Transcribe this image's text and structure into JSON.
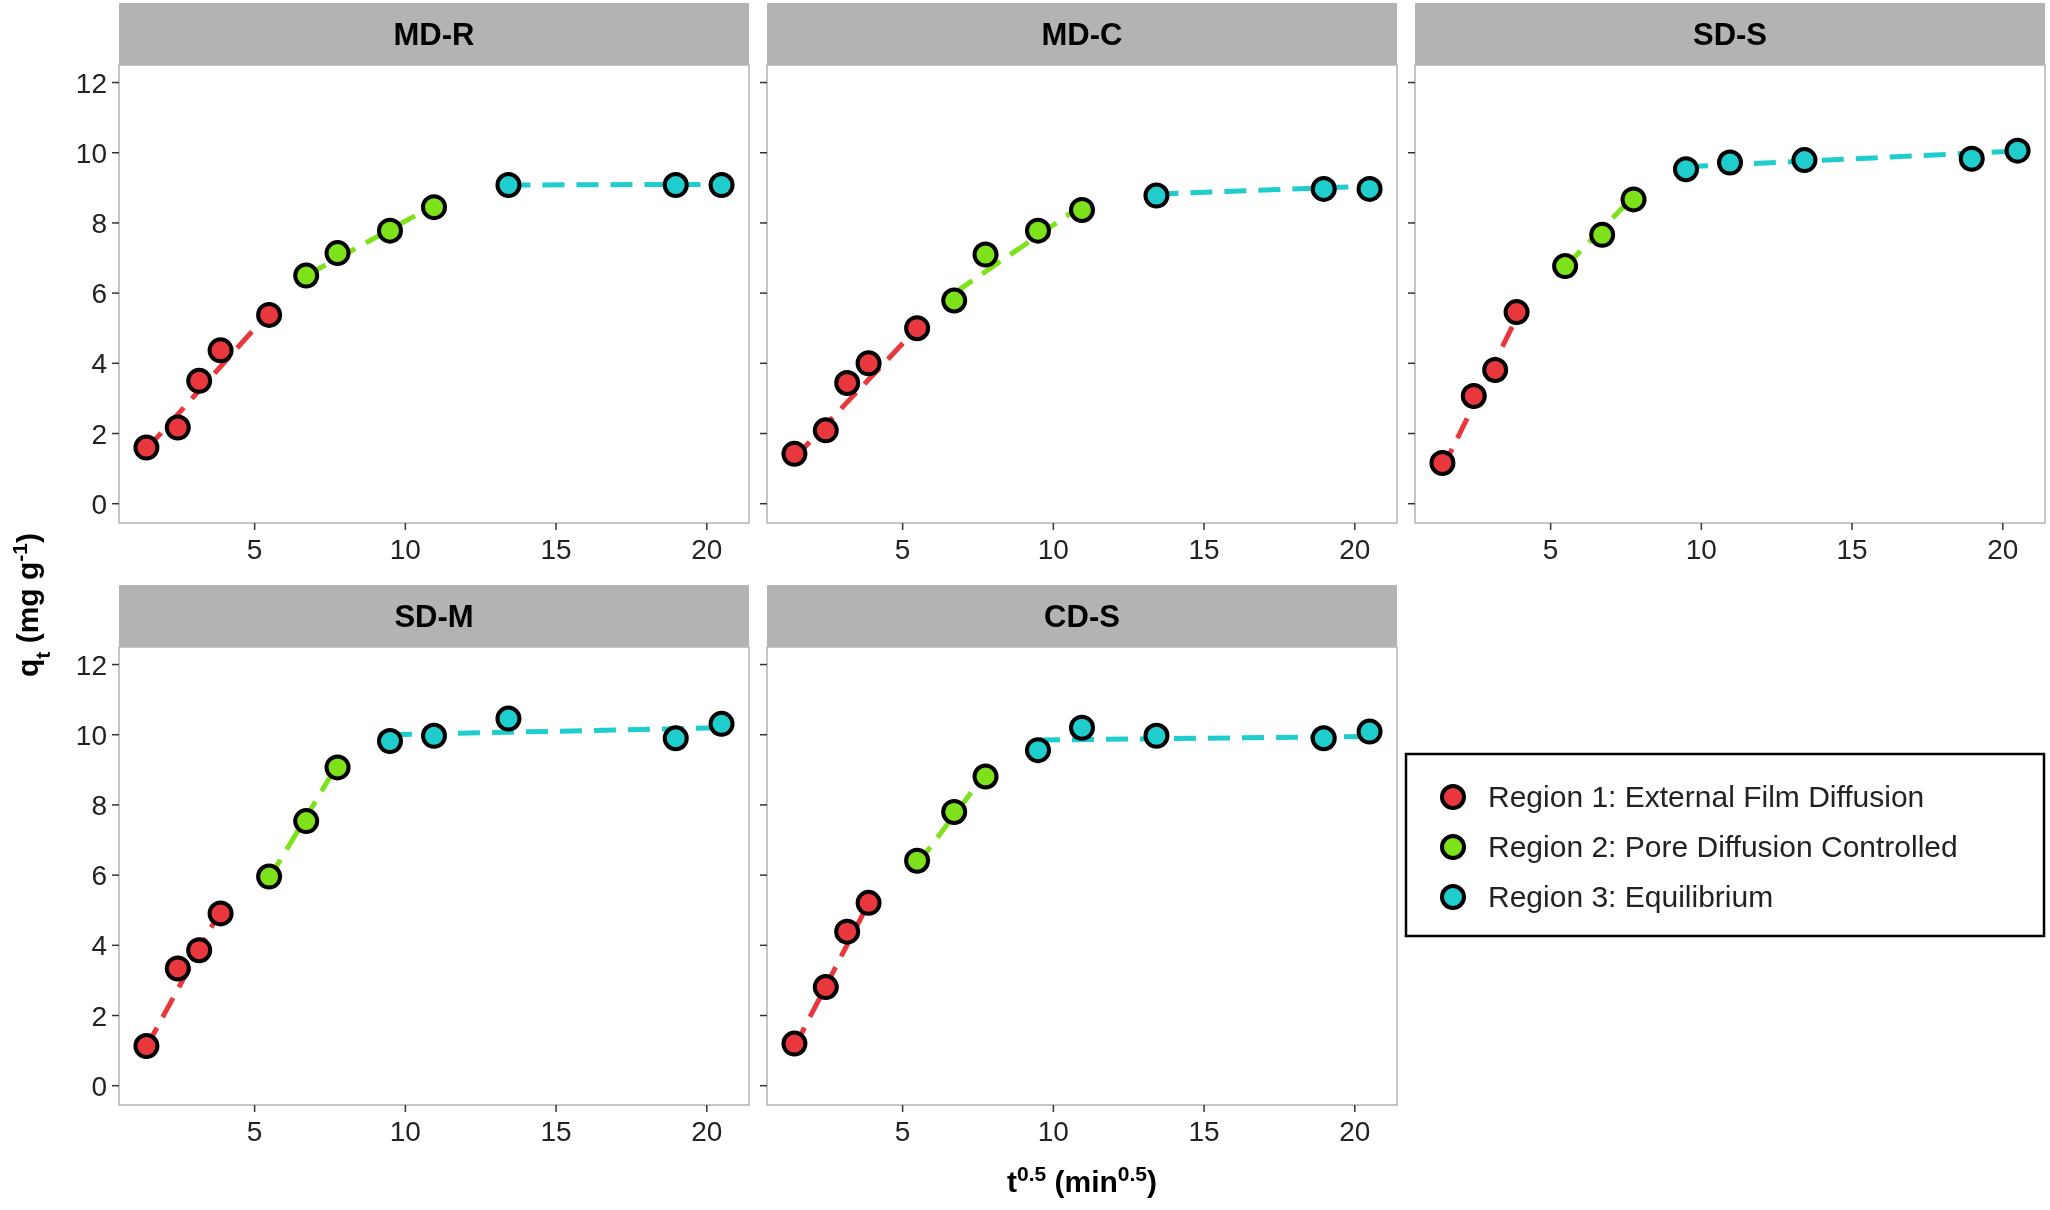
{
  "chart_data": [
    {
      "type": "scatter",
      "title": "MD-R",
      "ylabel": "q$_{t}$ (mg g$^{-1}$)",
      "xlim": [
        0.5,
        21.4
      ],
      "ylim": [
        -0.55,
        12.5
      ],
      "xticks": [
        5,
        10,
        15,
        20
      ],
      "yticks": [
        0,
        2,
        4,
        6,
        8,
        10,
        12
      ],
      "marker": "circle",
      "series": [
        {
          "color": "#e8383d",
          "x": [
            1.41,
            2.45,
            3.16,
            3.87,
            5.48
          ],
          "values": [
            1.6,
            2.17,
            3.5,
            4.37,
            5.38
          ]
        },
        {
          "color": "#7ee21a",
          "x": [
            6.71,
            7.75,
            9.49,
            10.95
          ],
          "values": [
            6.5,
            7.14,
            7.78,
            8.45
          ]
        },
        {
          "color": "#1fcdcd",
          "x": [
            13.42,
            18.97,
            20.49
          ],
          "values": [
            9.08,
            9.08,
            9.08
          ]
        },
        {
          "type": "line",
          "marker": "none",
          "line_style": "dashed",
          "color": "#e8383d",
          "x": [
            1.41,
            5.48
          ],
          "values": [
            1.55,
            5.45
          ]
        },
        {
          "type": "line",
          "marker": "none",
          "line_style": "dashed",
          "color": "#7ee21a",
          "x": [
            6.71,
            10.95
          ],
          "values": [
            6.5,
            8.5
          ]
        },
        {
          "type": "line",
          "marker": "none",
          "line_style": "dashed",
          "color": "#1fcdcd",
          "x": [
            13.42,
            20.49
          ],
          "values": [
            9.08,
            9.1
          ]
        }
      ]
    },
    {
      "type": "scatter",
      "title": "MD-C",
      "xlim": [
        0.5,
        21.4
      ],
      "ylim": [
        -0.55,
        12.5
      ],
      "xticks": [
        5,
        10,
        15,
        20
      ],
      "yticks": [
        0,
        2,
        4,
        6,
        8,
        10,
        12
      ],
      "tick_labels": "x",
      "marker": "circle",
      "series": [
        {
          "color": "#e8383d",
          "x": [
            1.41,
            2.45,
            3.16,
            3.87,
            5.48
          ],
          "values": [
            1.42,
            2.09,
            3.44,
            4.0,
            5.0
          ]
        },
        {
          "color": "#7ee21a",
          "x": [
            6.71,
            7.75,
            9.49,
            10.95
          ],
          "values": [
            5.79,
            7.1,
            7.78,
            8.37
          ]
        },
        {
          "color": "#1fcdcd",
          "x": [
            13.42,
            18.97,
            20.49
          ],
          "values": [
            8.78,
            8.97,
            8.97
          ]
        },
        {
          "type": "line",
          "marker": "none",
          "line_style": "dashed",
          "color": "#e8383d",
          "x": [
            1.41,
            5.48
          ],
          "values": [
            1.3,
            5.0
          ]
        },
        {
          "type": "line",
          "marker": "none",
          "line_style": "dashed",
          "color": "#7ee21a",
          "x": [
            6.71,
            10.95
          ],
          "values": [
            6.0,
            8.5
          ]
        },
        {
          "type": "line",
          "marker": "none",
          "line_style": "dashed",
          "color": "#1fcdcd",
          "x": [
            13.42,
            20.49
          ],
          "values": [
            8.82,
            9.05
          ]
        }
      ]
    },
    {
      "type": "scatter",
      "title": "SD-S",
      "xlim": [
        0.5,
        21.4
      ],
      "ylim": [
        -0.55,
        12.5
      ],
      "xticks": [
        5,
        10,
        15,
        20
      ],
      "yticks": [
        0,
        2,
        4,
        6,
        8,
        10,
        12
      ],
      "tick_labels": "x",
      "marker": "circle",
      "series": [
        {
          "color": "#e8383d",
          "x": [
            1.41,
            2.45,
            3.16,
            3.87
          ],
          "values": [
            1.16,
            3.07,
            3.81,
            5.46
          ]
        },
        {
          "color": "#7ee21a",
          "x": [
            5.48,
            6.71,
            7.75
          ],
          "values": [
            6.77,
            7.66,
            8.67
          ]
        },
        {
          "color": "#1fcdcd",
          "x": [
            9.49,
            10.95,
            13.42,
            18.97,
            20.49
          ],
          "values": [
            9.53,
            9.72,
            9.79,
            9.83,
            10.06
          ]
        },
        {
          "type": "line",
          "marker": "none",
          "line_style": "dashed",
          "color": "#e8383d",
          "x": [
            1.41,
            3.87
          ],
          "values": [
            1.0,
            5.3
          ]
        },
        {
          "type": "line",
          "marker": "none",
          "line_style": "dashed",
          "color": "#7ee21a",
          "x": [
            5.48,
            7.75
          ],
          "values": [
            6.75,
            8.75
          ]
        },
        {
          "type": "line",
          "marker": "none",
          "line_style": "dashed",
          "color": "#1fcdcd",
          "x": [
            9.49,
            20.49
          ],
          "values": [
            9.6,
            10.05
          ]
        }
      ]
    },
    {
      "type": "scatter",
      "title": "SD-M",
      "xlim": [
        0.5,
        21.4
      ],
      "ylim": [
        -0.55,
        12.5
      ],
      "xticks": [
        5,
        10,
        15,
        20
      ],
      "yticks": [
        0,
        2,
        4,
        6,
        8,
        10,
        12
      ],
      "marker": "circle",
      "series": [
        {
          "color": "#e8383d",
          "x": [
            1.41,
            2.45,
            3.16,
            3.87
          ],
          "values": [
            1.13,
            3.34,
            3.86,
            4.91
          ]
        },
        {
          "color": "#7ee21a",
          "x": [
            5.48,
            6.71,
            7.75
          ],
          "values": [
            5.96,
            7.54,
            9.07
          ]
        },
        {
          "color": "#1fcdcd",
          "x": [
            9.49,
            10.95,
            13.42,
            18.97,
            20.49
          ],
          "values": [
            9.82,
            9.97,
            10.46,
            9.9,
            10.31
          ]
        },
        {
          "type": "line",
          "marker": "none",
          "line_style": "dashed",
          "color": "#e8383d",
          "x": [
            1.41,
            3.87
          ],
          "values": [
            1.1,
            5.0
          ]
        },
        {
          "type": "line",
          "marker": "none",
          "line_style": "dashed",
          "color": "#7ee21a",
          "x": [
            5.48,
            7.75
          ],
          "values": [
            5.9,
            9.15
          ]
        },
        {
          "type": "line",
          "marker": "none",
          "line_style": "dashed",
          "color": "#1fcdcd",
          "x": [
            9.49,
            20.49
          ],
          "values": [
            10.0,
            10.2
          ]
        }
      ]
    },
    {
      "type": "scatter",
      "title": "CD-S",
      "xlabel": "t$^{0.5}$ (min$^{0.5}$)",
      "xlim": [
        0.5,
        21.4
      ],
      "ylim": [
        -0.55,
        12.5
      ],
      "xticks": [
        5,
        10,
        15,
        20
      ],
      "yticks": [
        0,
        2,
        4,
        6,
        8,
        10,
        12
      ],
      "tick_labels": "x",
      "marker": "circle",
      "legend": "right",
      "series": [
        {
          "name": "Region 1: External Film Diffusion",
          "color": "#e8383d",
          "x": [
            1.41,
            2.45,
            3.16,
            3.87
          ],
          "values": [
            1.2,
            2.81,
            4.39,
            5.21
          ]
        },
        {
          "name": "Region 2: Pore Diffusion Controlled",
          "color": "#7ee21a",
          "x": [
            5.48,
            6.71,
            7.75
          ],
          "values": [
            6.41,
            7.8,
            8.81
          ]
        },
        {
          "name": "Region 3: Equilibrium",
          "color": "#1fcdcd",
          "x": [
            9.49,
            10.95,
            13.42,
            18.97,
            20.49
          ],
          "values": [
            9.56,
            10.2,
            9.97,
            9.9,
            10.09
          ]
        },
        {
          "type": "line",
          "marker": "none",
          "line_style": "dashed",
          "color": "#e8383d",
          "x": [
            1.41,
            3.87
          ],
          "values": [
            1.1,
            5.2
          ]
        },
        {
          "type": "line",
          "marker": "none",
          "line_style": "dashed",
          "color": "#7ee21a",
          "x": [
            5.48,
            7.75
          ],
          "values": [
            6.3,
            8.9
          ]
        },
        {
          "type": "line",
          "marker": "none",
          "line_style": "dashed",
          "color": "#1fcdcd",
          "x": [
            9.49,
            20.49
          ],
          "values": [
            9.85,
            9.95
          ]
        }
      ]
    }
  ]
}
